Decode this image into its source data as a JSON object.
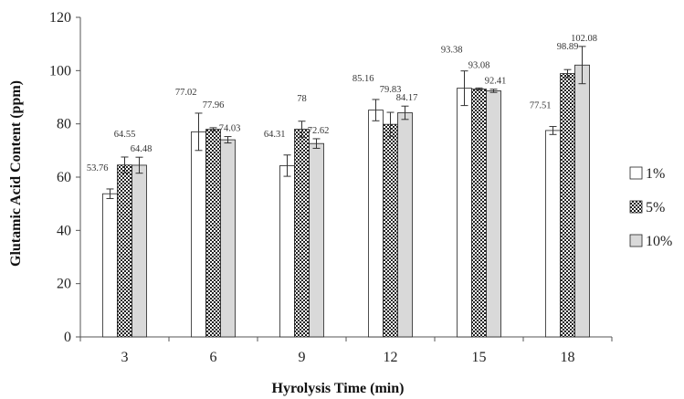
{
  "chart_data": {
    "type": "bar",
    "xlabel": "Hyrolysis Time (min)",
    "ylabel": "Glutamic Acid Content (ppm)",
    "ylim": [
      0,
      120
    ],
    "yticks": [
      0,
      20,
      40,
      60,
      80,
      100,
      120
    ],
    "categories": [
      "3",
      "6",
      "9",
      "12",
      "15",
      "18"
    ],
    "series": [
      {
        "name": "1%",
        "values": [
          53.76,
          77.02,
          64.31,
          85.16,
          93.38,
          77.51
        ],
        "labels": [
          "53.76",
          "77.02",
          "64.31",
          "85.16",
          "93.38",
          "77.51"
        ],
        "errors": [
          1.8,
          7.0,
          4.0,
          4.0,
          6.5,
          1.5
        ],
        "pattern": "white"
      },
      {
        "name": "5%",
        "values": [
          64.55,
          77.96,
          78,
          79.83,
          93.08,
          98.89
        ],
        "labels": [
          "64.55",
          "77.96",
          "78",
          "79.83",
          "93.08",
          "98.89"
        ],
        "errors": [
          3.0,
          0.6,
          3.0,
          4.5,
          0.4,
          1.5
        ],
        "pattern": "checkered"
      },
      {
        "name": "10%",
        "values": [
          64.48,
          74.03,
          72.62,
          84.17,
          92.41,
          102.08
        ],
        "labels": [
          "64.48",
          "74.03",
          "72.62",
          "84.17",
          "92.41",
          "102.08"
        ],
        "errors": [
          3.0,
          1.2,
          1.8,
          2.5,
          0.6,
          7.0
        ],
        "pattern": "lightgray"
      }
    ],
    "legend_position": "right",
    "grid": false
  }
}
